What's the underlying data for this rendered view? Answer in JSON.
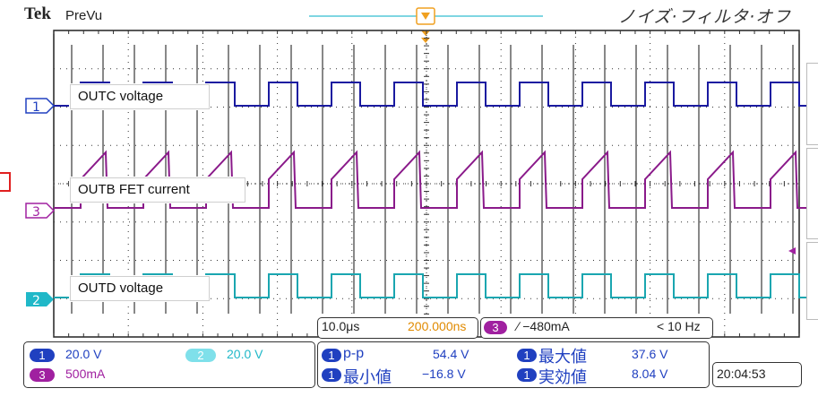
{
  "header": {
    "brand": "Tek",
    "mode": "PreVu",
    "filter_status": "ノイズ·フィルタ·オフ"
  },
  "channels": {
    "ch1": {
      "marker": "1",
      "color": "#2040c0",
      "trace_color": "#1a1aa0"
    },
    "ch3": {
      "marker": "3",
      "color": "#a020a0",
      "trace_color": "#8a1a8a"
    },
    "ch2": {
      "marker": "2",
      "color": "#20b8c8",
      "trace_color": "#1aa6b0"
    }
  },
  "callouts": {
    "outc": "OUTC voltage",
    "outb": "OUTB FET current",
    "outd": "OUTD voltage"
  },
  "timebase": {
    "scale": "10.0μs",
    "sample_interval": "200.000ns"
  },
  "trigger": {
    "source": "3",
    "slope_level": "∕ −480mA",
    "frequency": "< 10 Hz"
  },
  "vertical": {
    "ch1": {
      "badge": "1",
      "scale": "20.0 V"
    },
    "ch2": {
      "badge": "2",
      "scale": "20.0 V"
    },
    "ch3": {
      "badge": "3",
      "scale": "500mA"
    }
  },
  "measurements": [
    {
      "badge": "1",
      "name": "p-p",
      "value": "54.4 V"
    },
    {
      "badge": "1",
      "name": "最大値",
      "value": "37.6 V"
    },
    {
      "badge": "1",
      "name": "最小値",
      "value": "−16.8 V"
    },
    {
      "badge": "1",
      "name": "実効値",
      "value": "8.04 V"
    }
  ],
  "clock": "20:04:53",
  "colors": {
    "timebase_orange": "#e08a00",
    "trigger_marker": "#f0a020",
    "grid": "#333333"
  }
}
